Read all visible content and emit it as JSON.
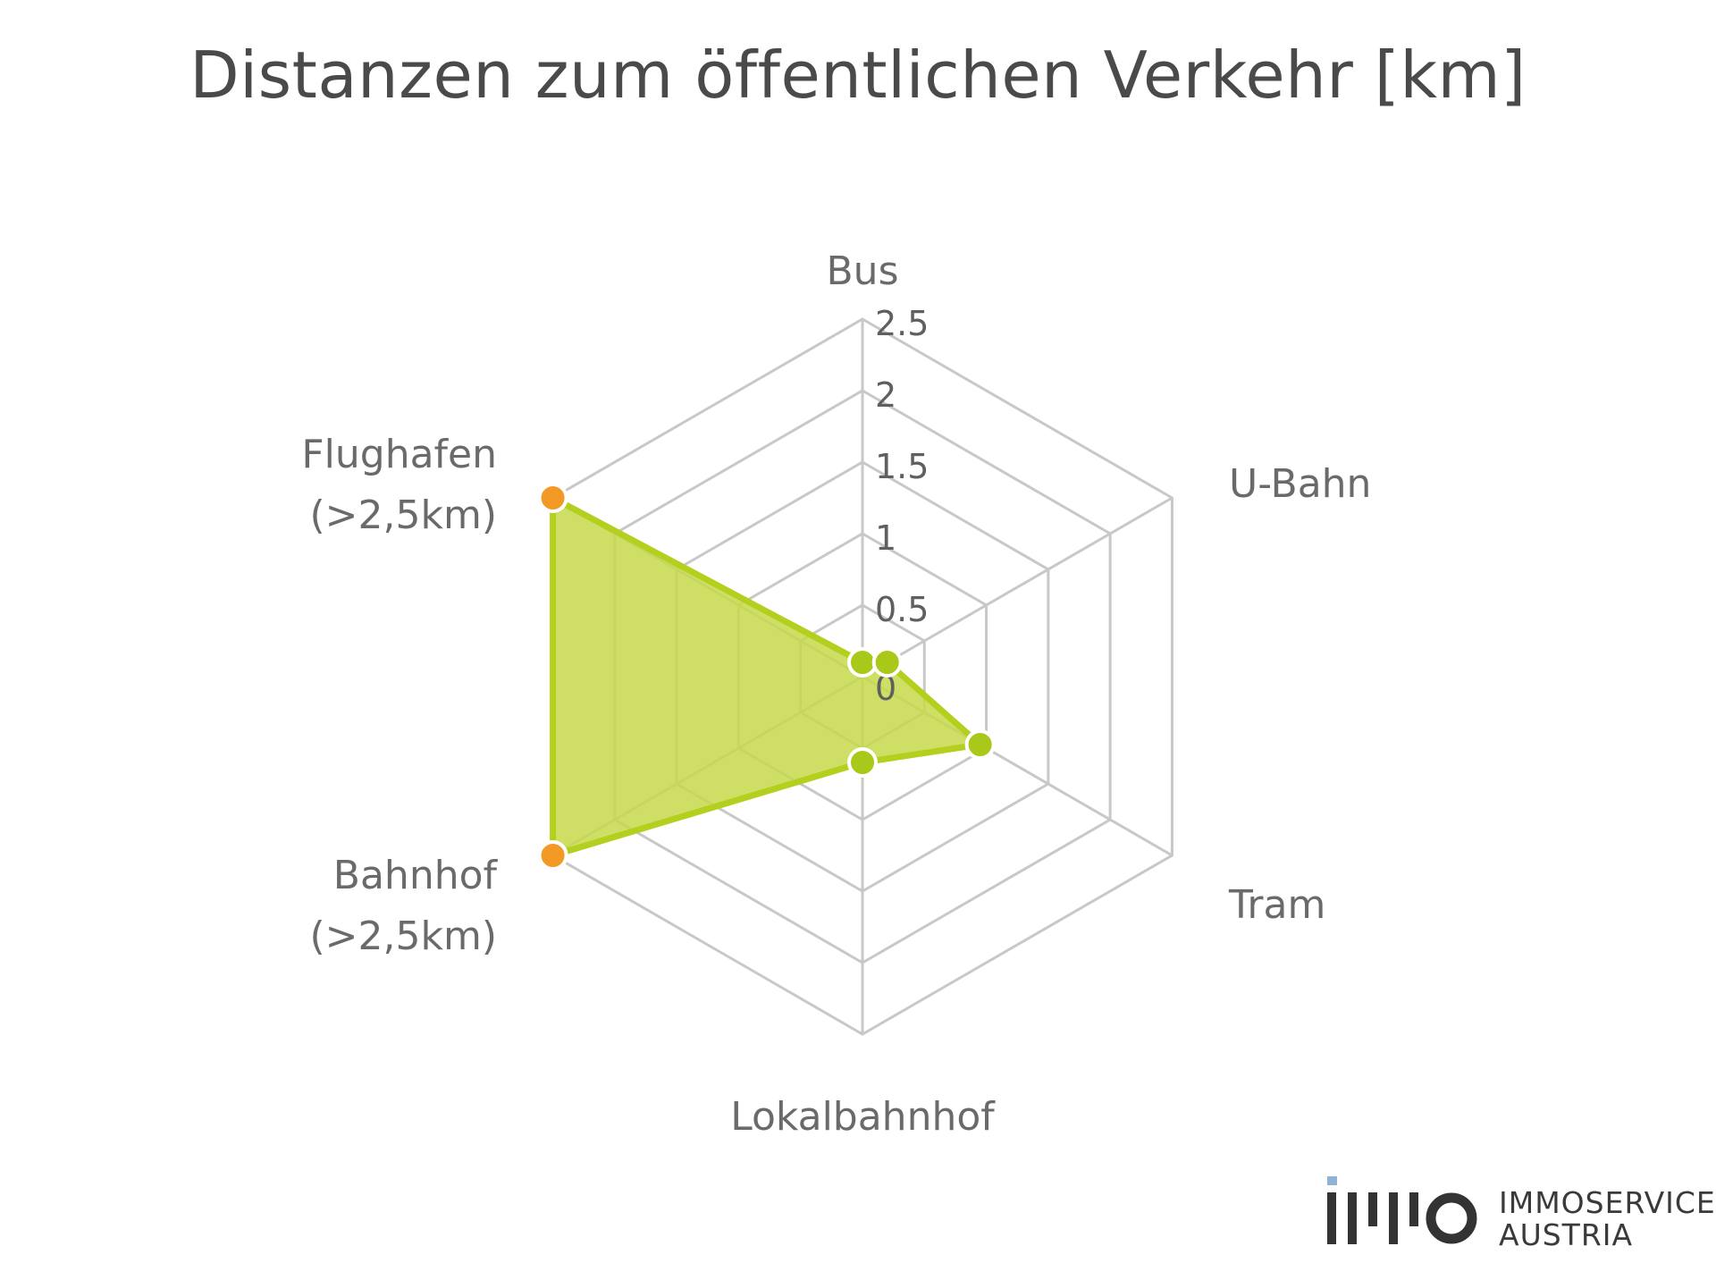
{
  "chart_data": {
    "type": "radar",
    "title": "Distanzen zum öffentlichen Verkehr [km]",
    "categories": [
      "Bus",
      "U-Bahn",
      "Tram",
      "Lokalbahnhof",
      "Bahnhof\n(>2,5km)",
      "Flughafen\n(>2,5km)"
    ],
    "values": [
      0.1,
      0.2,
      0.95,
      0.6,
      2.5,
      2.5
    ],
    "capped": [
      false,
      false,
      false,
      false,
      true,
      true
    ],
    "rlim": [
      0,
      2.5
    ],
    "ticks": [
      "0",
      "0.5",
      "1",
      "1.5",
      "2",
      "2.5"
    ],
    "tick_values": [
      0,
      0.5,
      1,
      1.5,
      2,
      2.5
    ],
    "grid": true,
    "legend": "none",
    "colors": {
      "fill": "#c7d94a",
      "stroke": "#b5cf1f",
      "marker": "#a9c91a",
      "capped_marker": "#f39a26",
      "grid": "#c8c8c8"
    }
  },
  "logo": {
    "line1": "IMMOSERVICE",
    "line2": "AUSTRIA",
    "accent_color": "#8fb3d6",
    "mark_color": "#333333"
  }
}
